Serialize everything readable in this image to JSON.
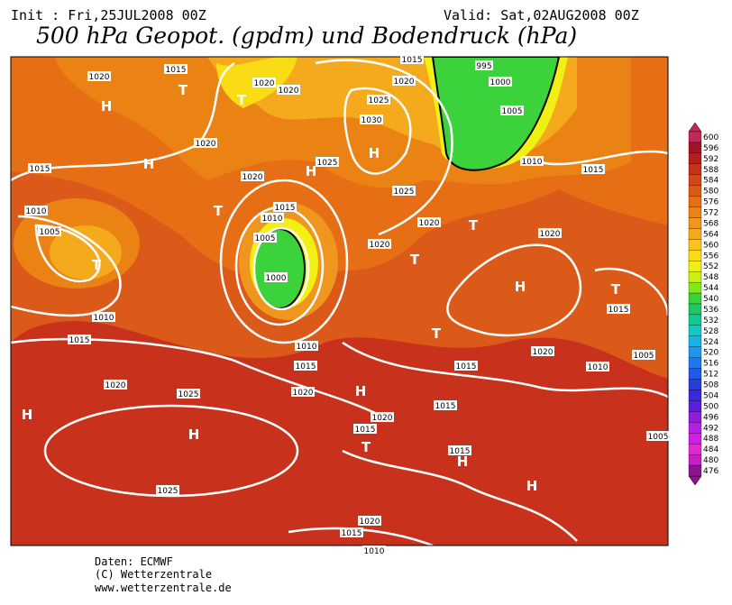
{
  "header": {
    "init": "Init : Fri,25JUL2008 00Z",
    "valid": "Valid: Sat,02AUG2008 00Z",
    "title": "500 hPa Geopot. (gpdm) und Bodendruck (hPa)"
  },
  "map": {
    "pressure_labels": [
      1015,
      1020,
      1020,
      1020,
      1025,
      1030,
      1020,
      1015,
      995,
      1000,
      1005,
      1010,
      1015,
      1020,
      1015,
      1020,
      1025,
      1025,
      1015,
      1010,
      1005,
      1010,
      1005,
      1000,
      1020,
      1020,
      1020,
      1010,
      1015,
      1010,
      1015,
      1015,
      1020,
      1010,
      1015,
      1005,
      1020,
      1025,
      1020,
      1020,
      1015,
      1015,
      1015,
      1005,
      1025,
      1020,
      1015,
      1010
    ],
    "centers": [
      "H",
      "T",
      "T",
      "H",
      "T",
      "H",
      "H",
      "T",
      "T",
      "T",
      "H",
      "T",
      "T",
      "H",
      "H",
      "H",
      "T",
      "H",
      "H"
    ]
  },
  "colorbar": {
    "ticks": [
      600,
      596,
      592,
      588,
      584,
      580,
      576,
      572,
      568,
      564,
      560,
      556,
      552,
      548,
      544,
      540,
      536,
      532,
      528,
      524,
      520,
      516,
      512,
      508,
      504,
      500,
      496,
      492,
      488,
      484,
      480,
      476
    ],
    "colors": [
      "#c0285a",
      "#a01428",
      "#b41e1e",
      "#c83219",
      "#d2461e",
      "#dc5a19",
      "#e66e14",
      "#eb8214",
      "#f0961e",
      "#f5aa1e",
      "#fac31e",
      "#fadc14",
      "#f0f014",
      "#c8f014",
      "#82e61e",
      "#3cd23c",
      "#1ec864",
      "#14c896",
      "#14c8c8",
      "#14b4e6",
      "#1e96f0",
      "#1e78f0",
      "#1e5af0",
      "#283cdc",
      "#3c28dc",
      "#5a1edc",
      "#8c1edc",
      "#b41ee6",
      "#d21ee6",
      "#e628d2",
      "#c81ec8",
      "#8c148c"
    ]
  },
  "footer": {
    "source": "Daten: ECMWF",
    "copyright": "(C) Wetterzentrale",
    "url": "www.wetterzentrale.de"
  }
}
